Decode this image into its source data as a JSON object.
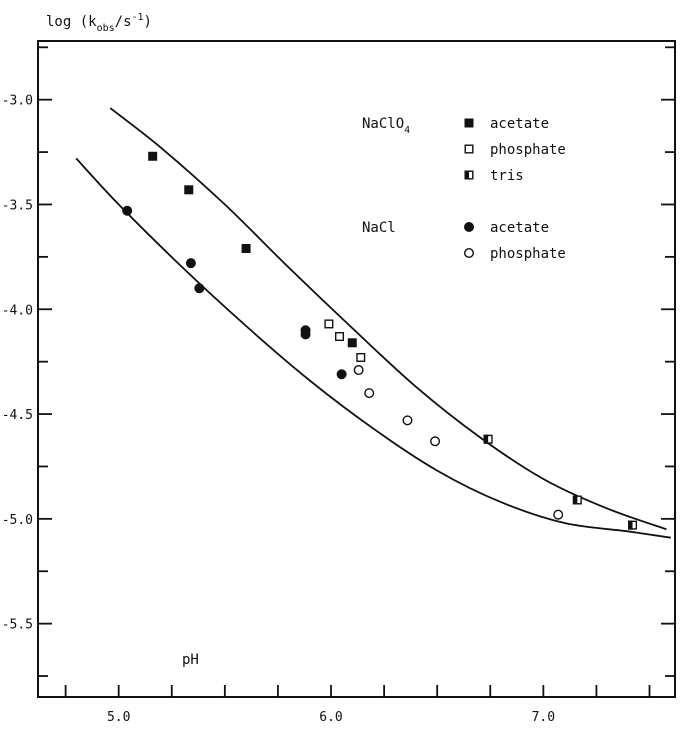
{
  "chart_data": {
    "type": "scatter",
    "title": "",
    "ylabel": "log (k_obs/s⁻¹)",
    "ylabel_parts": {
      "pre": "log (k",
      "sub": "obs",
      "mid": "/s",
      "sup": "-1",
      "post": ")"
    },
    "xlabel": "pH",
    "xlim": [
      4.62,
      7.62
    ],
    "ylim": [
      -5.85,
      -2.72
    ],
    "x_ticks": [
      5.0,
      6.0,
      7.0
    ],
    "x_tick_labels": [
      "5.0",
      "6.0",
      "7.0"
    ],
    "y_ticks": [
      -3.0,
      -3.5,
      -4.0,
      -4.5,
      -5.0,
      -5.5
    ],
    "y_tick_labels": [
      "-3.0",
      "-3.5",
      "-4.0",
      "-4.5",
      "-5.0",
      "-5.5"
    ],
    "grid": false,
    "legend_position": "top-right",
    "legend_groups": [
      {
        "title": "NaClO",
        "title_sub": "4",
        "entries": [
          {
            "marker": "filled-square",
            "label": "acetate"
          },
          {
            "marker": "open-square",
            "label": "phosphate"
          },
          {
            "marker": "half-square",
            "label": "tris"
          }
        ]
      },
      {
        "title": "NaCl",
        "title_sub": "",
        "entries": [
          {
            "marker": "filled-circle",
            "label": "acetate"
          },
          {
            "marker": "open-circle",
            "label": "phosphate"
          }
        ]
      }
    ],
    "series": [
      {
        "name": "NaClO4 acetate",
        "marker": "filled-square",
        "points": [
          [
            5.16,
            -3.27
          ],
          [
            5.33,
            -3.43
          ],
          [
            5.6,
            -3.71
          ],
          [
            6.1,
            -4.16
          ]
        ]
      },
      {
        "name": "NaClO4 phosphate",
        "marker": "open-square",
        "points": [
          [
            5.99,
            -4.07
          ],
          [
            6.04,
            -4.13
          ],
          [
            6.14,
            -4.23
          ]
        ]
      },
      {
        "name": "NaClO4 tris",
        "marker": "half-square",
        "points": [
          [
            6.74,
            -4.62
          ],
          [
            7.16,
            -4.91
          ],
          [
            7.42,
            -5.03
          ]
        ]
      },
      {
        "name": "NaCl acetate",
        "marker": "filled-circle",
        "points": [
          [
            5.04,
            -3.53
          ],
          [
            5.34,
            -3.78
          ],
          [
            5.38,
            -3.9
          ],
          [
            5.88,
            -4.1
          ],
          [
            5.88,
            -4.12
          ],
          [
            6.05,
            -4.31
          ]
        ]
      },
      {
        "name": "NaCl phosphate",
        "marker": "open-circle",
        "points": [
          [
            6.13,
            -4.29
          ],
          [
            6.18,
            -4.4
          ],
          [
            6.36,
            -4.53
          ],
          [
            6.49,
            -4.63
          ],
          [
            7.07,
            -4.98
          ]
        ]
      }
    ],
    "curves": [
      {
        "name": "NaClO4 fit",
        "points": [
          [
            4.96,
            -3.04
          ],
          [
            5.2,
            -3.23
          ],
          [
            5.5,
            -3.5
          ],
          [
            5.8,
            -3.8
          ],
          [
            6.1,
            -4.09
          ],
          [
            6.4,
            -4.37
          ],
          [
            6.7,
            -4.61
          ],
          [
            7.0,
            -4.81
          ],
          [
            7.3,
            -4.95
          ],
          [
            7.58,
            -5.05
          ]
        ]
      },
      {
        "name": "NaCl fit",
        "points": [
          [
            4.8,
            -3.28
          ],
          [
            5.0,
            -3.5
          ],
          [
            5.3,
            -3.8
          ],
          [
            5.6,
            -4.08
          ],
          [
            5.9,
            -4.34
          ],
          [
            6.2,
            -4.57
          ],
          [
            6.5,
            -4.77
          ],
          [
            6.8,
            -4.92
          ],
          [
            7.1,
            -5.02
          ],
          [
            7.4,
            -5.06
          ],
          [
            7.6,
            -5.09
          ]
        ]
      }
    ]
  }
}
